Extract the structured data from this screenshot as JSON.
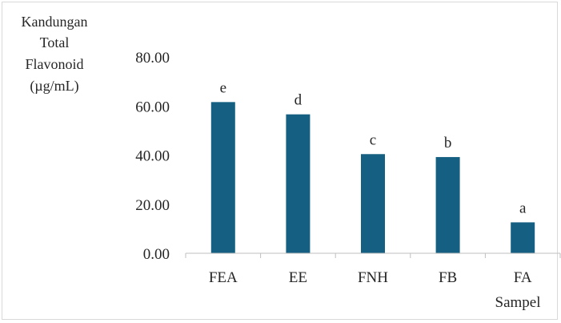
{
  "chart_data": {
    "type": "bar",
    "categories": [
      "FEA",
      "EE",
      "FNH",
      "FB",
      "FA"
    ],
    "values": [
      61.6,
      56.6,
      40.4,
      39.2,
      12.6
    ],
    "data_labels": [
      "e",
      "d",
      "c",
      "b",
      "a"
    ],
    "ylabel_lines": [
      "Kandungan",
      "Total",
      "Flavonoid",
      "(µg/mL)"
    ],
    "xlabel": "Sampel",
    "yticks": [
      "0.00",
      "20.00",
      "40.00",
      "60.00",
      "80.00"
    ],
    "ylim": [
      0,
      80
    ],
    "grid": false,
    "bar_color": "#156082"
  }
}
